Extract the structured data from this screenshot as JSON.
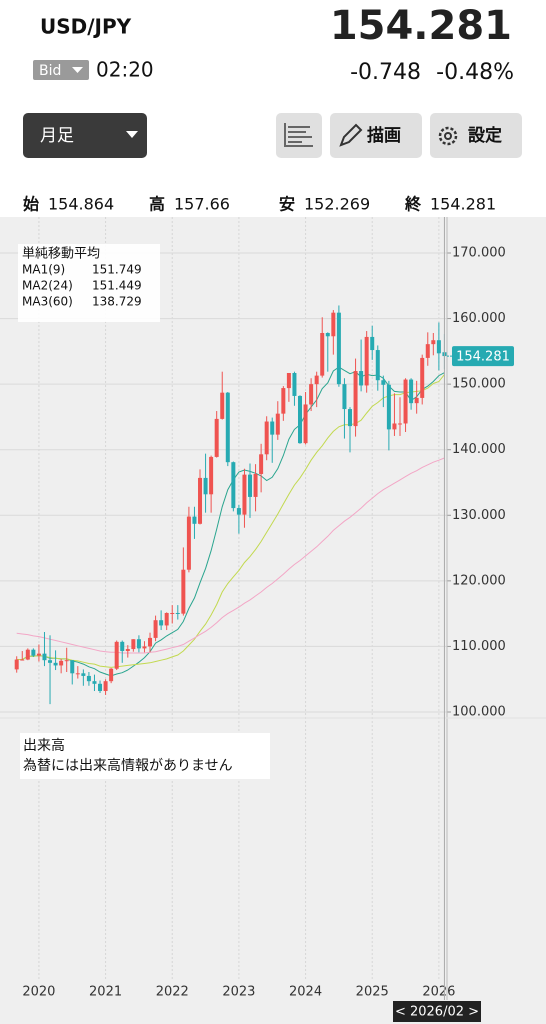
{
  "header": {
    "symbol": "USD/JPY",
    "price_type": "Bid",
    "time": "02:20",
    "price": 154.281,
    "change": -0.748,
    "change_pct": "-0.48%"
  },
  "toolbar": {
    "period": "月足",
    "draw": "描画",
    "settings": "設定"
  },
  "ohlc": [
    {
      "label": "始",
      "value": 154.864
    },
    {
      "label": "高",
      "value": 157.66
    },
    {
      "label": "安",
      "value": 152.269
    },
    {
      "label": "終",
      "value": 154.281
    }
  ],
  "chart_data": {
    "type": "candlestick",
    "categories": [
      null,
      null,
      null,
      null,
      "2020",
      null,
      null,
      null,
      null,
      null,
      null,
      null,
      null,
      null,
      null,
      null,
      "2021",
      null,
      null,
      null,
      null,
      null,
      null,
      null,
      null,
      null,
      null,
      null,
      "2022",
      null,
      null,
      null,
      null,
      null,
      null,
      null,
      null,
      null,
      null,
      null,
      "2023",
      null,
      null,
      null,
      null,
      null,
      null,
      null,
      null,
      null,
      null,
      null,
      "2024",
      null,
      null,
      null,
      null,
      null,
      null,
      null,
      null,
      null,
      null,
      null,
      "2025",
      null,
      null,
      null,
      null,
      null,
      null,
      null,
      null,
      null,
      null,
      null,
      "2026",
      null
    ],
    "open": [
      106.5,
      108.0,
      108.0,
      109.5,
      108.6,
      108.9,
      107.9,
      107.5,
      107.1,
      107.8,
      107.9,
      105.9,
      105.9,
      105.5,
      104.7,
      104.3,
      103.2,
      104.7,
      106.6,
      110.7,
      109.3,
      109.6,
      111.1,
      109.7,
      110.0,
      111.3,
      114.0,
      113.2,
      115.1,
      115.1,
      115.0,
      121.7,
      129.8,
      128.7,
      135.7,
      133.2,
      138.9,
      144.7,
      148.7,
      138.1,
      131.1,
      130.1,
      136.2,
      132.8,
      136.3,
      139.3,
      144.3,
      142.3,
      145.5,
      149.4,
      151.7,
      148.2,
      141.0,
      146.9,
      150.0,
      151.3,
      157.8,
      157.3,
      160.9,
      150.0,
      146.2,
      143.6,
      152.0,
      149.8,
      157.2,
      155.2,
      150.6,
      149.9,
      143.1,
      144.0,
      144.0,
      150.7,
      147.1,
      147.9,
      154.0,
      156.1,
      156.7,
      154.864
    ],
    "high": [
      108.5,
      109.3,
      109.7,
      109.7,
      110.3,
      112.2,
      111.7,
      109.4,
      108.1,
      109.8,
      107.9,
      107.0,
      106.5,
      106.1,
      105.7,
      104.8,
      105.0,
      106.7,
      110.9,
      110.9,
      110.2,
      111.1,
      111.7,
      110.8,
      112.1,
      114.7,
      115.5,
      115.2,
      116.3,
      116.3,
      125.1,
      131.3,
      131.3,
      137.0,
      139.4,
      139.1,
      145.9,
      151.9,
      148.8,
      138.2,
      131.6,
      137.1,
      137.9,
      137.8,
      140.9,
      145.1,
      144.9,
      147.4,
      149.7,
      151.7,
      151.9,
      148.3,
      148.8,
      150.9,
      151.9,
      160.2,
      157.9,
      161.3,
      162.0,
      150.9,
      146.5,
      153.9,
      156.8,
      158.1,
      158.9,
      155.9,
      151.3,
      150.5,
      148.6,
      148.0,
      150.9,
      150.9,
      150.5,
      154.5,
      157.9,
      157.8,
      159.4,
      157.66
    ],
    "low": [
      106.0,
      107.9,
      107.9,
      108.4,
      107.7,
      107.0,
      101.2,
      106.4,
      105.9,
      106.1,
      104.2,
      105.1,
      104.0,
      104.0,
      103.2,
      102.9,
      102.6,
      104.4,
      106.4,
      107.5,
      108.3,
      109.2,
      109.1,
      109.1,
      109.1,
      110.8,
      112.5,
      112.5,
      113.5,
      114.1,
      114.7,
      121.3,
      126.4,
      128.6,
      130.4,
      130.4,
      138.8,
      144.6,
      137.5,
      130.6,
      127.2,
      128.1,
      129.6,
      130.6,
      133.5,
      138.4,
      138.0,
      141.5,
      144.4,
      147.3,
      146.7,
      140.9,
      140.8,
      145.9,
      146.5,
      151.0,
      151.9,
      154.5,
      149.6,
      141.7,
      139.6,
      142.0,
      148.9,
      148.7,
      153.7,
      149.0,
      146.5,
      139.9,
      142.1,
      142.1,
      142.7,
      146.1,
      145.5,
      146.9,
      152.8,
      154.4,
      152.1,
      152.269
    ],
    "close": [
      108.0,
      108.0,
      109.5,
      108.6,
      108.9,
      107.9,
      107.5,
      107.1,
      107.8,
      107.9,
      105.9,
      105.9,
      105.5,
      104.7,
      104.3,
      103.2,
      104.7,
      106.6,
      110.7,
      109.3,
      109.6,
      111.1,
      109.7,
      110.0,
      111.3,
      114.0,
      113.2,
      115.1,
      115.1,
      115.0,
      121.7,
      129.8,
      128.7,
      135.7,
      133.2,
      138.9,
      144.7,
      148.7,
      138.1,
      131.1,
      130.1,
      136.2,
      132.8,
      136.3,
      139.3,
      144.3,
      142.3,
      145.5,
      149.4,
      151.7,
      148.2,
      141.0,
      146.9,
      150.0,
      151.3,
      157.8,
      157.3,
      160.9,
      150.0,
      146.2,
      143.6,
      152.0,
      149.8,
      157.2,
      155.2,
      150.6,
      149.9,
      143.1,
      144.0,
      144.0,
      150.7,
      147.1,
      147.9,
      154.0,
      156.1,
      156.7,
      154.7,
      154.281
    ],
    "up_color": "#ef5350",
    "down_color": "#26aab2",
    "ylim": [
      100,
      170
    ],
    "yticks": [
      {
        "value": 100,
        "label": "100.000"
      },
      {
        "value": 110,
        "label": "110.000"
      },
      {
        "value": 120,
        "label": "120.000"
      },
      {
        "value": 130,
        "label": "130.000"
      },
      {
        "value": 140,
        "label": "140.000"
      },
      {
        "value": 150,
        "label": "150.000"
      },
      {
        "value": 160,
        "label": "160.000"
      },
      {
        "value": 170,
        "label": "170.000"
      }
    ],
    "grid": true,
    "indicator_title": "単純移動平均",
    "series": [
      {
        "name": "MA1(9)",
        "last": 151.749,
        "color": "#2aa58f",
        "values": [
          108.0,
          108.0,
          108.5,
          108.5,
          108.6,
          108.5,
          108.2,
          108.2,
          108.1,
          108.1,
          107.8,
          107.6,
          107.3,
          106.9,
          106.6,
          106.1,
          105.8,
          105.5,
          105.8,
          106.0,
          106.4,
          107.0,
          107.6,
          108.3,
          109.2,
          110.5,
          111.0,
          111.6,
          112.1,
          112.6,
          113.8,
          115.8,
          117.4,
          119.7,
          121.9,
          124.6,
          127.9,
          131.3,
          133.9,
          135.4,
          136.6,
          136.9,
          136.7,
          136.4,
          136.0,
          135.3,
          135.8,
          137.1,
          139.1,
          141.6,
          143.1,
          143.8,
          145.4,
          146.5,
          147.6,
          149.3,
          150.2,
          152.0,
          152.6,
          152.1,
          151.6,
          151.9,
          151.1,
          151.5,
          151.3,
          151.4,
          150.9,
          149.7,
          148.9,
          148.8,
          148.8,
          147.5,
          148.1,
          149.2,
          149.7,
          150.4,
          151.3,
          151.749
        ]
      },
      {
        "name": "MA2(24)",
        "last": 151.449,
        "color": "#c2d94f",
        "values": [
          108.0,
          108.0,
          108.5,
          108.5,
          108.6,
          108.5,
          108.3,
          108.2,
          108.1,
          108.1,
          107.9,
          107.8,
          107.6,
          107.4,
          107.3,
          107.0,
          106.9,
          106.8,
          106.9,
          107.0,
          107.1,
          107.2,
          107.3,
          107.4,
          107.5,
          107.7,
          107.9,
          108.1,
          108.4,
          108.7,
          109.3,
          110.2,
          111.1,
          112.3,
          113.4,
          114.8,
          116.4,
          118.3,
          119.6,
          120.6,
          121.6,
          122.8,
          123.7,
          124.8,
          126.0,
          127.4,
          128.8,
          130.2,
          131.7,
          133.2,
          134.6,
          135.7,
          137.0,
          138.4,
          139.6,
          140.6,
          141.8,
          142.8,
          143.5,
          143.8,
          143.8,
          144.0,
          144.5,
          145.6,
          146.6,
          147.2,
          147.9,
          148.2,
          148.4,
          148.4,
          148.7,
          148.8,
          148.9,
          149.0,
          149.4,
          150.1,
          150.4,
          151.449
        ]
      },
      {
        "name": "MA3(60)",
        "last": 138.729,
        "color": "#f3a6c6",
        "values": [
          112.0,
          111.9,
          111.8,
          111.6,
          111.5,
          111.3,
          111.1,
          110.9,
          110.7,
          110.5,
          110.3,
          110.1,
          109.9,
          109.7,
          109.5,
          109.3,
          109.2,
          109.1,
          109.1,
          109.0,
          109.0,
          109.0,
          109.0,
          109.0,
          109.1,
          109.2,
          109.4,
          109.6,
          109.8,
          110.0,
          110.3,
          110.8,
          111.3,
          111.8,
          112.3,
          112.9,
          113.6,
          114.4,
          115.0,
          115.5,
          116.0,
          116.6,
          117.1,
          117.7,
          118.3,
          119.0,
          119.6,
          120.3,
          121.0,
          121.8,
          122.5,
          123.1,
          123.8,
          124.5,
          125.2,
          126.0,
          126.8,
          127.7,
          128.4,
          129.1,
          129.7,
          130.4,
          131.1,
          131.9,
          132.6,
          133.3,
          133.9,
          134.4,
          134.9,
          135.4,
          135.9,
          136.4,
          136.8,
          137.3,
          137.7,
          138.1,
          138.4,
          138.729
        ]
      }
    ],
    "cursor_label": "< 2026/02 >"
  },
  "volume_panel": {
    "title": "出来高",
    "message": "為替には出来高情報がありません"
  }
}
